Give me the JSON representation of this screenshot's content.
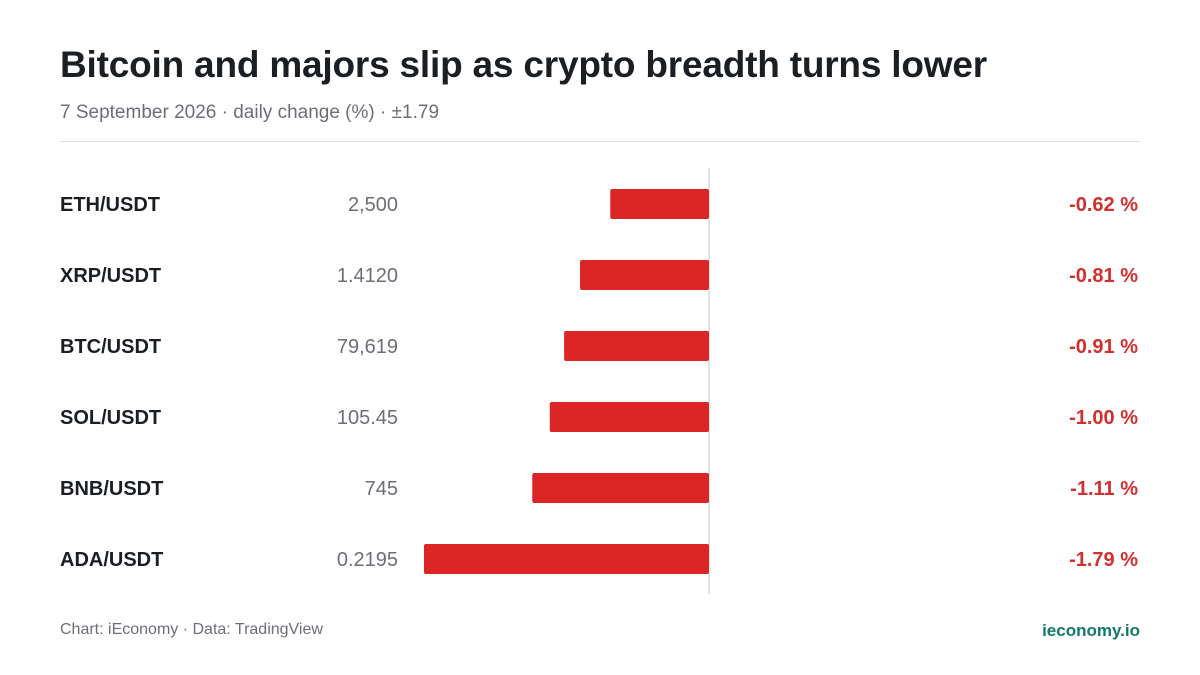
{
  "header": {
    "title": "Bitcoin and majors slip as crypto breadth turns lower",
    "subtitle": "7 September 2026 · daily change (%) · ±1.79"
  },
  "footer": {
    "source": "Chart: iEconomy · Data: TradingView",
    "brand": "ieconomy.io"
  },
  "colors": {
    "negative": "#dc2626",
    "negative_text": "#d32f2f",
    "axis": "#d6d7da",
    "label": "#1b1f23",
    "price": "#6b6f75"
  },
  "chart_data": {
    "type": "bar",
    "orientation": "horizontal",
    "categories": [
      "ETH/USDT",
      "XRP/USDT",
      "BTC/USDT",
      "SOL/USDT",
      "BNB/USDT",
      "ADA/USDT"
    ],
    "prices": [
      "2,500",
      "1.4120",
      "79,619",
      "105.45",
      "745",
      "0.2195"
    ],
    "values": [
      -0.62,
      -0.81,
      -0.91,
      -1.0,
      -1.11,
      -1.79
    ],
    "value_labels": [
      "-0.62 %",
      "-0.81 %",
      "-0.91 %",
      "-1.00 %",
      "-1.11 %",
      "-1.79 %"
    ],
    "xlim": [
      -1.79,
      1.79
    ],
    "grid": false
  }
}
